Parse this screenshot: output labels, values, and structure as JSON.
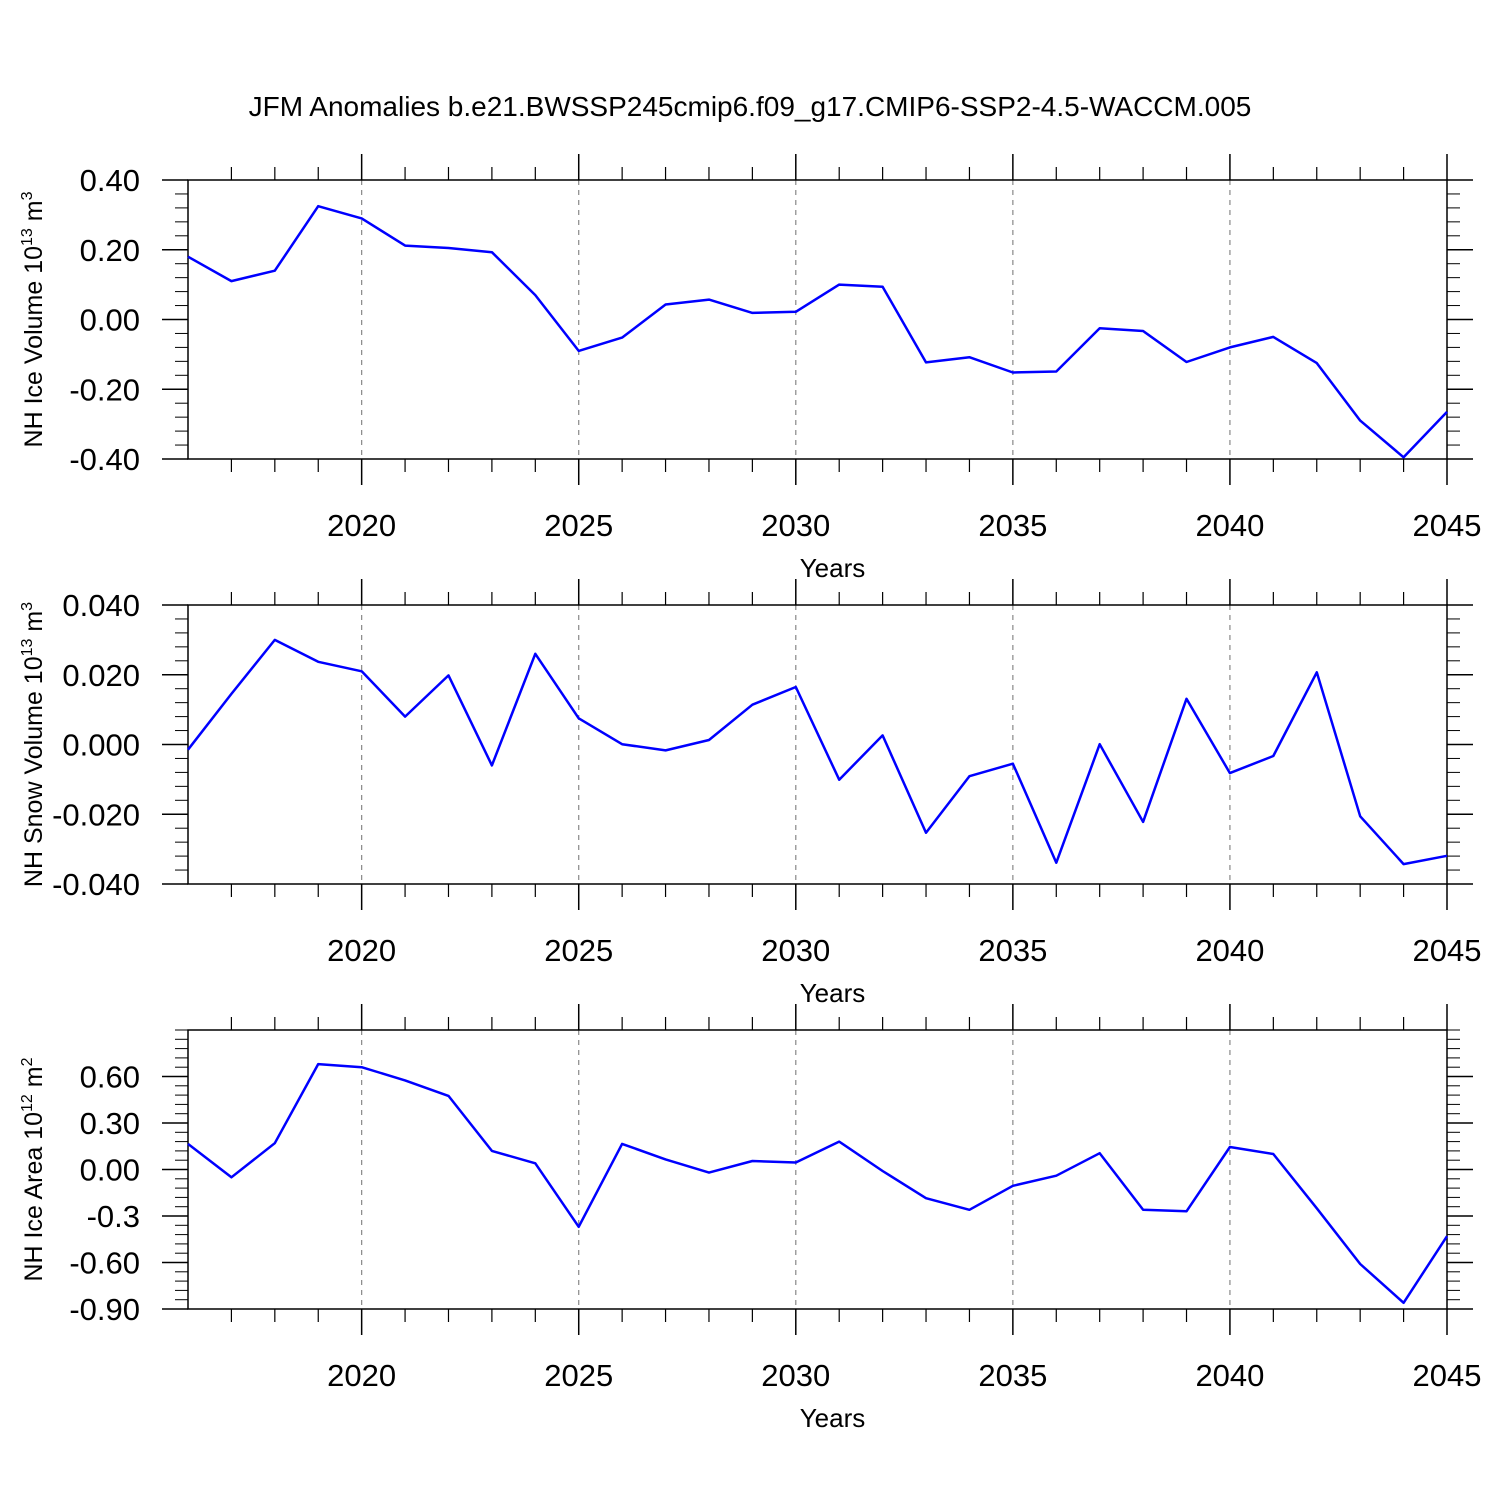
{
  "title": "JFM Anomalies b.e21.BWSSP245cmip6.f09_g17.CMIP6-SSP2-4.5-WACCM.005",
  "colors": {
    "series": "#0000ff",
    "axes": "#000000",
    "grid": "#888888"
  },
  "chart_data": [
    {
      "type": "line",
      "xlabel": "Years",
      "ylabel": {
        "text": "NH Ice Volume 10",
        "sup": "13",
        "unit": " m",
        "unit_sup": "3"
      },
      "xlim": [
        2016,
        2045
      ],
      "ylim": [
        -0.4,
        0.4
      ],
      "x_ticks": [
        "2020",
        "2025",
        "2030",
        "2035",
        "2040",
        "2045"
      ],
      "y_ticks": [
        "0.40",
        "0.20",
        "0.00",
        "-0.20",
        "-0.40"
      ],
      "grid": "x dashed",
      "x": [
        2016,
        2017,
        2018,
        2019,
        2020,
        2021,
        2022,
        2023,
        2024,
        2025,
        2026,
        2027,
        2028,
        2029,
        2030,
        2031,
        2032,
        2033,
        2034,
        2035,
        2036,
        2037,
        2038,
        2039,
        2040,
        2041,
        2042,
        2043,
        2044,
        2045
      ],
      "values": [
        0.18,
        0.11,
        0.14,
        0.325,
        0.29,
        0.212,
        0.205,
        0.193,
        0.07,
        -0.09,
        -0.052,
        0.043,
        0.057,
        0.019,
        0.022,
        0.1,
        0.094,
        -0.123,
        -0.108,
        -0.152,
        -0.149,
        -0.025,
        -0.033,
        -0.122,
        -0.08,
        -0.05,
        -0.125,
        -0.29,
        -0.395,
        -0.265
      ]
    },
    {
      "type": "line",
      "xlabel": "Years",
      "ylabel": {
        "text": "NH Snow Volume 10",
        "sup": "13",
        "unit": " m",
        "unit_sup": "3"
      },
      "xlim": [
        2016,
        2045
      ],
      "ylim": [
        -0.04,
        0.04
      ],
      "x_ticks": [
        "2020",
        "2025",
        "2030",
        "2035",
        "2040",
        "2045"
      ],
      "y_ticks": [
        "0.040",
        "0.020",
        "0.000",
        "-0.020",
        "-0.040"
      ],
      "grid": "x dashed",
      "x": [
        2016,
        2017,
        2018,
        2019,
        2020,
        2021,
        2022,
        2023,
        2024,
        2025,
        2026,
        2027,
        2028,
        2029,
        2030,
        2031,
        2032,
        2033,
        2034,
        2035,
        2036,
        2037,
        2038,
        2039,
        2040,
        2041,
        2042,
        2043,
        2044,
        2045
      ],
      "values": [
        -0.0015,
        0.0145,
        0.03,
        0.0237,
        0.021,
        0.008,
        0.0198,
        -0.006,
        0.026,
        0.0075,
        0.0001,
        -0.0017,
        0.0013,
        0.0114,
        0.0165,
        -0.0101,
        0.0026,
        -0.0253,
        -0.0091,
        -0.0055,
        -0.0339,
        0.0001,
        -0.0222,
        0.0131,
        -0.0082,
        -0.0033,
        0.0207,
        -0.0206,
        -0.0343,
        -0.0319
      ]
    },
    {
      "type": "line",
      "xlabel": "Years",
      "ylabel": {
        "text": "NH Ice Area 10",
        "sup": "12",
        "unit": " m",
        "unit_sup": "2"
      },
      "xlim": [
        2016,
        2045
      ],
      "ylim": [
        -0.9,
        0.9
      ],
      "x_ticks": [
        "2020",
        "2025",
        "2030",
        "2035",
        "2040",
        "2045"
      ],
      "y_ticks": [
        "0.60",
        "0.30",
        "0.00",
        "-0.3",
        "-0.60",
        "-0.90"
      ],
      "y_tick_values": [
        0.6,
        0.3,
        0.0,
        -0.3,
        -0.6,
        -0.9
      ],
      "grid": "x dashed",
      "x": [
        2016,
        2017,
        2018,
        2019,
        2020,
        2021,
        2022,
        2023,
        2024,
        2025,
        2026,
        2027,
        2028,
        2029,
        2030,
        2031,
        2032,
        2033,
        2034,
        2035,
        2036,
        2037,
        2038,
        2039,
        2040,
        2041,
        2042,
        2043,
        2044,
        2045
      ],
      "values": [
        0.165,
        -0.05,
        0.17,
        0.68,
        0.66,
        0.575,
        0.475,
        0.12,
        0.04,
        -0.37,
        0.165,
        0.065,
        -0.02,
        0.055,
        0.045,
        0.18,
        -0.01,
        -0.185,
        -0.26,
        -0.105,
        -0.04,
        0.105,
        -0.26,
        -0.27,
        0.145,
        0.1,
        -0.25,
        -0.61,
        -0.86,
        -0.43
      ]
    }
  ]
}
